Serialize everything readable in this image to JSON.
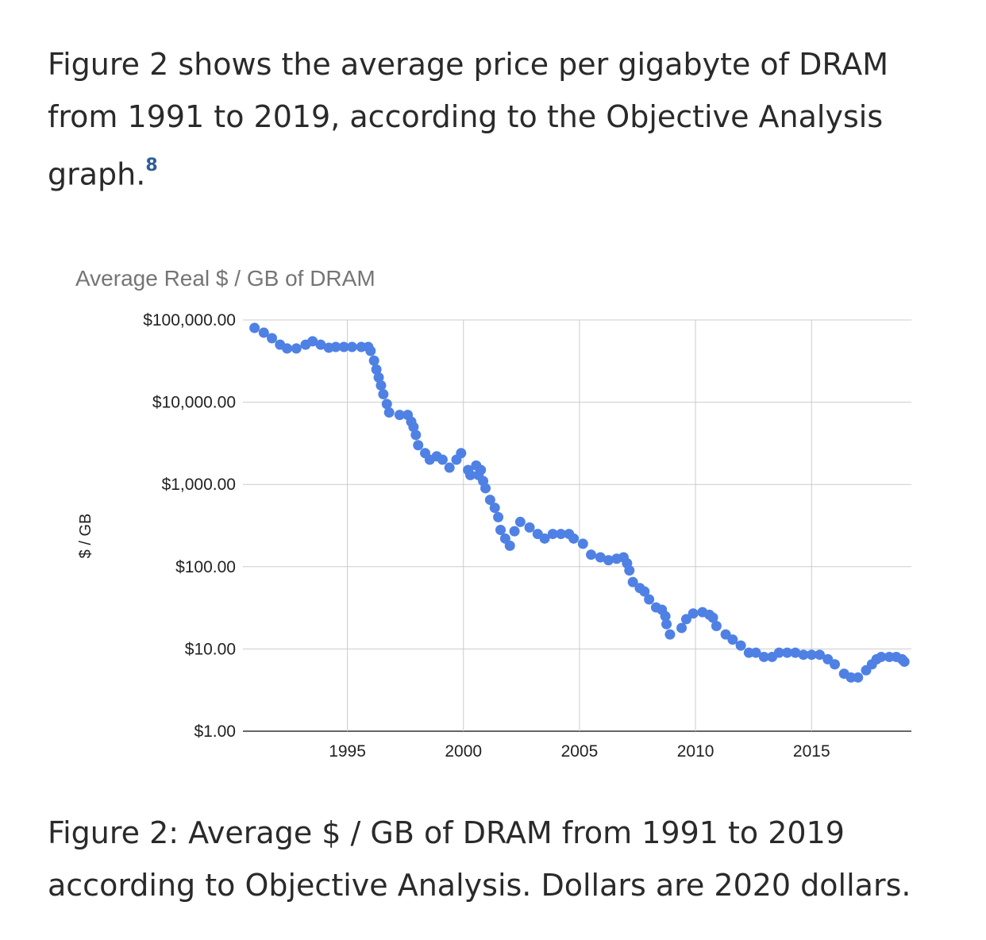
{
  "intro": {
    "text": "Figure 2 shows the average price per gigabyte of DRAM from 1991 to 2019, according to the Objective Analysis graph.",
    "footnote": "8"
  },
  "caption": "Figure 2: Average $ / GB of DRAM from 1991 to 2019 according to Objective Analysis. Dollars are 2020 dollars.",
  "chart_data": {
    "type": "scatter",
    "title": "Average Real $ / GB of DRAM",
    "xlabel": "",
    "ylabel": "$ / GB",
    "yscale": "log",
    "ylim": [
      1,
      100000
    ],
    "xlim": [
      1990.5,
      2019.3
    ],
    "yticks": [
      1,
      10,
      100,
      1000,
      10000,
      100000
    ],
    "ytick_labels": [
      "$1.00",
      "$10.00",
      "$100.00",
      "$1,000.00",
      "$10,000.00",
      "$100,000.00"
    ],
    "xticks": [
      1995,
      2000,
      2005,
      2010,
      2015
    ],
    "xtick_labels": [
      "1995",
      "2000",
      "2005",
      "2010",
      "2015"
    ],
    "grid": true,
    "marker_color": "#4f81e5",
    "series": [
      {
        "name": "$ / GB",
        "x": [
          1991.0,
          1991.4,
          1991.75,
          1992.1,
          1992.4,
          1992.8,
          1993.2,
          1993.5,
          1993.85,
          1994.2,
          1994.5,
          1994.85,
          1995.2,
          1995.6,
          1995.9,
          1996.0,
          1996.15,
          1996.25,
          1996.35,
          1996.45,
          1996.55,
          1996.7,
          1996.8,
          1997.25,
          1997.6,
          1997.75,
          1997.85,
          1997.95,
          1998.05,
          1998.35,
          1998.55,
          1998.85,
          1999.1,
          1999.4,
          1999.7,
          1999.9,
          2000.2,
          2000.3,
          2000.55,
          2000.65,
          2000.75,
          2000.85,
          2000.95,
          2001.15,
          2001.35,
          2001.5,
          2001.6,
          2001.8,
          2002.0,
          2002.2,
          2002.45,
          2002.85,
          2003.2,
          2003.5,
          2003.85,
          2004.2,
          2004.55,
          2004.75,
          2005.15,
          2005.5,
          2005.9,
          2006.25,
          2006.6,
          2006.9,
          2007.05,
          2007.15,
          2007.3,
          2007.6,
          2007.8,
          2008.0,
          2008.3,
          2008.55,
          2008.7,
          2008.75,
          2008.9,
          2009.4,
          2009.6,
          2009.9,
          2010.3,
          2010.6,
          2010.75,
          2010.9,
          2011.3,
          2011.6,
          2011.95,
          2012.3,
          2012.6,
          2012.95,
          2013.3,
          2013.6,
          2013.95,
          2014.3,
          2014.65,
          2015.0,
          2015.35,
          2015.7,
          2016.0,
          2016.4,
          2016.7,
          2017.0,
          2017.35,
          2017.6,
          2017.8,
          2018.0,
          2018.35,
          2018.65,
          2018.9,
          2019.0
        ],
        "y": [
          80000,
          70000,
          60000,
          50000,
          45000,
          45000,
          50000,
          55000,
          50000,
          46000,
          47000,
          47000,
          47000,
          47000,
          47000,
          42000,
          32000,
          25000,
          20000,
          16000,
          12500,
          9500,
          7500,
          7000,
          7000,
          5800,
          5000,
          4000,
          3000,
          2400,
          2000,
          2200,
          2000,
          1600,
          2000,
          2400,
          1500,
          1300,
          1700,
          1300,
          1500,
          1100,
          900,
          650,
          520,
          400,
          280,
          220,
          180,
          270,
          350,
          300,
          250,
          220,
          250,
          250,
          250,
          220,
          190,
          140,
          130,
          120,
          125,
          130,
          110,
          90,
          65,
          55,
          50,
          40,
          32,
          30,
          25,
          20,
          15,
          18,
          23,
          27,
          28,
          26,
          24,
          19,
          15,
          13,
          11,
          9,
          9,
          8,
          8,
          9,
          9,
          9,
          8.5,
          8.5,
          8.5,
          7.5,
          6.5,
          5,
          4.5,
          4.5,
          5.5,
          6.5,
          7.5,
          8,
          8,
          8,
          7.5,
          7
        ]
      }
    ]
  }
}
